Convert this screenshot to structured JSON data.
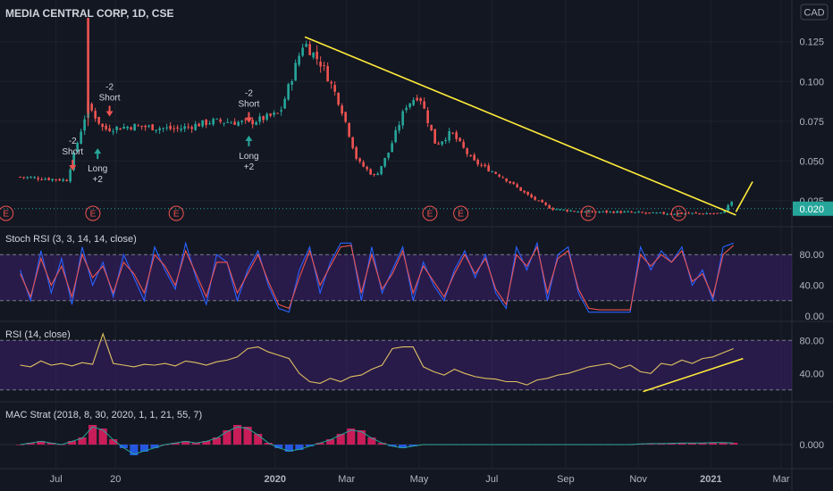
{
  "header": {
    "title": "MEDIA CENTRAL CORP, 1D, CSE",
    "currency": "CAD"
  },
  "colors": {
    "background": "#131722",
    "up": "#26a69a",
    "down": "#ef5350",
    "trendline": "#ffeb3b",
    "band_fill": "#3a1f6b",
    "stoch_k": "#2962ff",
    "stoch_d": "#ef5350",
    "rsi_line": "#e0c060",
    "grid": "#1e222d",
    "axis_text": "#b2b5be"
  },
  "chart_data": [
    {
      "type": "candlestick",
      "pane": "price",
      "title": "MEDIA CENTRAL CORP, 1D, CSE",
      "y_ticks": [
        "0.125",
        "0.100",
        "0.075",
        "0.050",
        "0.025"
      ],
      "ylim": [
        0.012,
        0.14
      ],
      "last_price_label": "0.020",
      "x_ticks": [
        "Jul",
        "20",
        "2020",
        "Mar",
        "May",
        "Jul",
        "Sep",
        "Nov",
        "2021",
        "Mar"
      ],
      "trendlines": [
        {
          "from": {
            "date": "2020-01-26",
            "value": 0.128
          },
          "to": {
            "date": "2021-01-22",
            "value": 0.016
          }
        },
        {
          "from": {
            "date": "2021-01-22",
            "value": 0.018
          },
          "to": {
            "date": "2021-02-05",
            "value": 0.037
          }
        }
      ],
      "series": [
        {
          "date": "2019-06-01",
          "value": 0.04
        },
        {
          "date": "2019-07-10",
          "value": 0.038
        },
        {
          "date": "2019-07-28",
          "value": 0.085
        },
        {
          "date": "2019-08-10",
          "value": 0.07
        },
        {
          "date": "2019-09-05",
          "value": 0.072
        },
        {
          "date": "2019-10-10",
          "value": 0.07
        },
        {
          "date": "2019-11-10",
          "value": 0.075
        },
        {
          "date": "2019-12-10",
          "value": 0.074
        },
        {
          "date": "2020-01-05",
          "value": 0.08
        },
        {
          "date": "2020-01-25",
          "value": 0.125
        },
        {
          "date": "2020-02-10",
          "value": 0.11
        },
        {
          "date": "2020-02-25",
          "value": 0.085
        },
        {
          "date": "2020-03-10",
          "value": 0.05
        },
        {
          "date": "2020-03-25",
          "value": 0.04
        },
        {
          "date": "2020-04-05",
          "value": 0.055
        },
        {
          "date": "2020-04-20",
          "value": 0.085
        },
        {
          "date": "2020-05-01",
          "value": 0.092
        },
        {
          "date": "2020-05-15",
          "value": 0.06
        },
        {
          "date": "2020-05-28",
          "value": 0.068
        },
        {
          "date": "2020-06-15",
          "value": 0.05
        },
        {
          "date": "2020-07-10",
          "value": 0.04
        },
        {
          "date": "2020-08-01",
          "value": 0.028
        },
        {
          "date": "2020-08-20",
          "value": 0.02
        },
        {
          "date": "2020-09-15",
          "value": 0.018
        },
        {
          "date": "2020-10-15",
          "value": 0.018
        },
        {
          "date": "2020-11-15",
          "value": 0.017
        },
        {
          "date": "2020-12-15",
          "value": 0.017
        },
        {
          "date": "2021-01-10",
          "value": 0.017
        },
        {
          "date": "2021-01-20",
          "value": 0.026
        }
      ],
      "signals": [
        {
          "type": "short",
          "lines": [
            "-2",
            "Short"
          ],
          "date": "2019-07-15",
          "value": 0.044
        },
        {
          "type": "long",
          "lines": [
            "Long",
            "+2"
          ],
          "date": "2019-08-05",
          "value": 0.058
        },
        {
          "type": "short",
          "lines": [
            "-2",
            "Short"
          ],
          "date": "2019-08-15",
          "value": 0.078
        },
        {
          "type": "short",
          "lines": [
            "-2",
            "Short"
          ],
          "date": "2019-12-10",
          "value": 0.074
        },
        {
          "type": "long",
          "lines": [
            "Long",
            "+2"
          ],
          "date": "2019-12-10",
          "value": 0.066
        }
      ],
      "earnings_markers": [
        {
          "label": "E",
          "date": "2019-05-20"
        },
        {
          "label": "E",
          "date": "2019-08-01"
        },
        {
          "label": "E",
          "date": "2019-10-10"
        },
        {
          "label": "E",
          "date": "2020-05-10"
        },
        {
          "label": "E",
          "date": "2020-06-05"
        },
        {
          "label": "E",
          "date": "2020-09-20"
        },
        {
          "label": "E",
          "date": "2020-12-05"
        }
      ]
    },
    {
      "type": "line",
      "pane": "stoch_rsi",
      "title": "Stoch RSI (3, 3, 14, 14, close)",
      "y_ticks": [
        "80.00",
        "40.00",
        "0.00"
      ],
      "ylim": [
        0,
        100
      ],
      "band": [
        20,
        80
      ],
      "series": [
        {
          "name": "",
          "values": [
            60,
            20,
            85,
            30,
            75,
            15,
            90,
            40,
            70,
            25,
            80,
            50,
            20,
            90,
            60,
            35,
            95,
            50,
            15,
            80,
            70,
            20,
            60,
            85,
            40,
            10,
            5,
            60,
            90,
            30,
            70,
            95,
            95,
            20,
            90,
            30,
            60,
            90,
            20,
            70,
            40,
            20,
            60,
            85,
            50,
            80,
            30,
            10,
            90,
            60,
            95,
            20,
            80,
            90,
            30,
            5,
            5,
            5,
            5,
            5,
            90,
            60,
            85,
            70,
            90,
            40,
            60,
            20,
            90,
            95
          ]
        },
        {
          "name": "",
          "values": [
            55,
            25,
            75,
            40,
            65,
            25,
            80,
            50,
            65,
            30,
            70,
            55,
            30,
            80,
            65,
            40,
            85,
            55,
            25,
            70,
            70,
            30,
            55,
            80,
            45,
            15,
            10,
            50,
            85,
            40,
            65,
            90,
            92,
            30,
            80,
            35,
            55,
            85,
            30,
            65,
            45,
            25,
            55,
            80,
            55,
            75,
            35,
            15,
            80,
            65,
            90,
            30,
            75,
            85,
            35,
            10,
            8,
            8,
            8,
            8,
            80,
            65,
            80,
            70,
            85,
            45,
            55,
            25,
            80,
            92
          ]
        }
      ]
    },
    {
      "type": "line",
      "pane": "rsi",
      "title": "RSI (14, close)",
      "y_ticks": [
        "80.00",
        "40.00"
      ],
      "ylim": [
        10,
        90
      ],
      "band": [
        20,
        80
      ],
      "trendline": {
        "from": {
          "date": "2020-11-05",
          "value": 18
        },
        "to": {
          "date": "2021-01-28",
          "value": 58
        }
      },
      "series": [
        {
          "name": "",
          "values": [
            50,
            48,
            55,
            50,
            52,
            49,
            53,
            51,
            88,
            52,
            50,
            48,
            51,
            50,
            52,
            49,
            55,
            53,
            50,
            54,
            56,
            60,
            70,
            72,
            66,
            62,
            58,
            40,
            30,
            28,
            34,
            30,
            36,
            38,
            45,
            50,
            70,
            72,
            72,
            48,
            42,
            38,
            45,
            40,
            36,
            34,
            33,
            30,
            30,
            26,
            32,
            34,
            38,
            40,
            44,
            48,
            50,
            52,
            46,
            50,
            42,
            40,
            52,
            50,
            56,
            52,
            58,
            60,
            65,
            70
          ]
        }
      ]
    },
    {
      "type": "bar",
      "pane": "mac_strat",
      "title": "MAC Strat (2018, 8, 30, 2020, 1, 1, 21, 55, 7)",
      "y_ticks": [
        "0.000"
      ],
      "ylim": [
        -1,
        1
      ],
      "values": [
        0.0,
        0.05,
        0.1,
        0.05,
        0.0,
        0.1,
        0.2,
        0.55,
        0.45,
        0.15,
        -0.1,
        -0.3,
        -0.2,
        -0.1,
        0.0,
        0.05,
        0.1,
        0.05,
        0.1,
        0.2,
        0.4,
        0.55,
        0.5,
        0.3,
        0.05,
        -0.1,
        -0.2,
        -0.15,
        -0.05,
        0.05,
        0.15,
        0.3,
        0.45,
        0.4,
        0.2,
        0.05,
        -0.05,
        -0.1,
        -0.05,
        0.0,
        0.0,
        0.0,
        0.0,
        0.0,
        0.0,
        0.0,
        0.0,
        0.0,
        0.0,
        0.0,
        0.0,
        0.0,
        0.0,
        0.0,
        0.0,
        0.0,
        0.0,
        0.0,
        0.0,
        0.0,
        0.02,
        0.03,
        0.03,
        0.04,
        0.05,
        0.05,
        0.05,
        0.06,
        0.06,
        0.05
      ]
    }
  ]
}
